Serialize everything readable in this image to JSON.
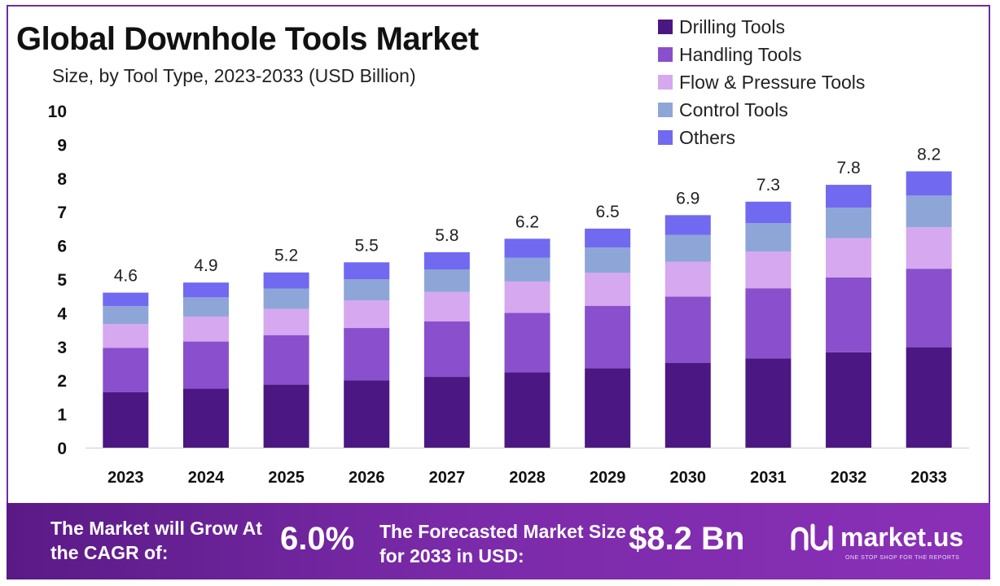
{
  "title": "Global Downhole Tools Market",
  "subtitle": "Size, by Tool Type, 2023-2033 (USD Billion)",
  "colors": {
    "drilling": "#4b1782",
    "handling": "#8a4fcc",
    "flow": "#d5a8ef",
    "control": "#8ea5d8",
    "others": "#7169f0",
    "frame": "#6b2ea0"
  },
  "chart_data": {
    "type": "bar",
    "stacked": true,
    "categories": [
      "2023",
      "2024",
      "2025",
      "2026",
      "2027",
      "2028",
      "2029",
      "2030",
      "2031",
      "2032",
      "2033"
    ],
    "ylim": [
      0,
      10
    ],
    "yticks": [
      "0",
      "1",
      "2",
      "3",
      "4",
      "5",
      "6",
      "7",
      "8",
      "9",
      "10"
    ],
    "totals": [
      "4.6",
      "4.9",
      "5.2",
      "5.5",
      "5.8",
      "6.2",
      "6.5",
      "6.9",
      "7.3",
      "7.8",
      "8.2"
    ],
    "series": [
      {
        "name": "Drilling Tools",
        "color": "#4b1782",
        "values": [
          1.65,
          1.75,
          1.87,
          2.0,
          2.1,
          2.24,
          2.36,
          2.52,
          2.65,
          2.83,
          2.98
        ]
      },
      {
        "name": "Handling Tools",
        "color": "#8a4fcc",
        "values": [
          1.31,
          1.4,
          1.47,
          1.55,
          1.65,
          1.76,
          1.85,
          1.96,
          2.08,
          2.22,
          2.33
        ]
      },
      {
        "name": "Flow & Pressure Tools",
        "color": "#d5a8ef",
        "values": [
          0.71,
          0.74,
          0.78,
          0.82,
          0.87,
          0.93,
          0.98,
          1.04,
          1.09,
          1.17,
          1.23
        ]
      },
      {
        "name": "Control Tools",
        "color": "#8ea5d8",
        "values": [
          0.53,
          0.57,
          0.6,
          0.63,
          0.67,
          0.71,
          0.75,
          0.79,
          0.84,
          0.9,
          0.94
        ]
      },
      {
        "name": "Others",
        "color": "#7169f0",
        "values": [
          0.4,
          0.44,
          0.48,
          0.5,
          0.51,
          0.56,
          0.56,
          0.59,
          0.64,
          0.68,
          0.72
        ]
      }
    ],
    "legend_position": "top-right",
    "grid": false
  },
  "footer": {
    "cagr_label": "The Market will Grow At the CAGR of:",
    "cagr_value": "6.0%",
    "forecast_label": "The Forecasted Market Size for 2033 in USD:",
    "forecast_value": "$8.2 Bn",
    "brand_name": "market.us",
    "brand_tagline": "ONE STOP SHOP FOR THE REPORTS",
    "brand_icon": "market-us-logo-icon"
  }
}
